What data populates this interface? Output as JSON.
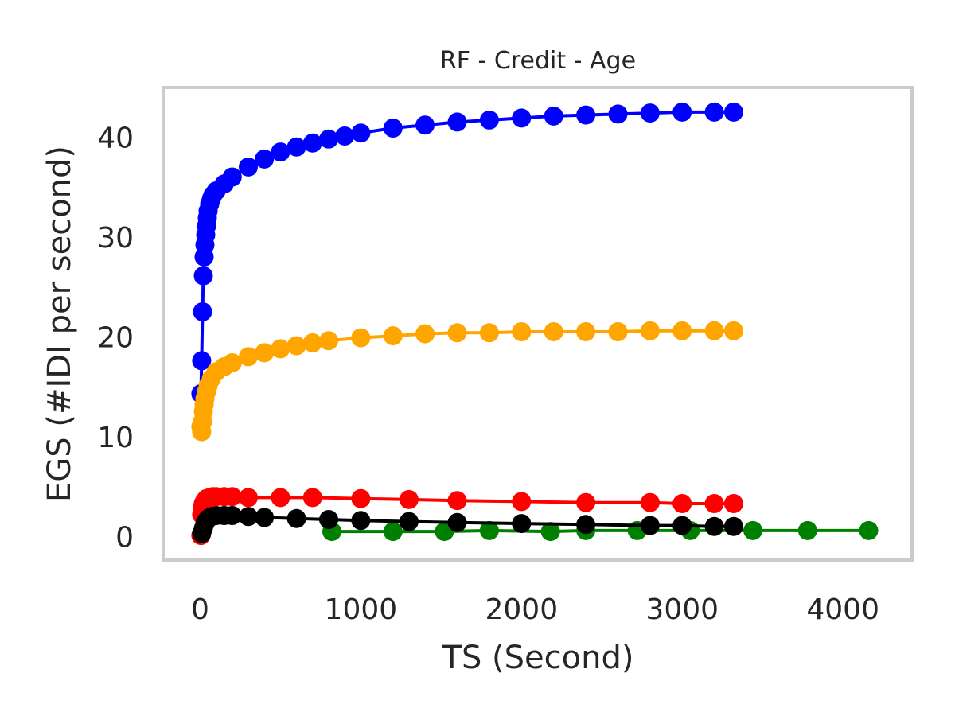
{
  "chart_data": {
    "type": "line",
    "title": "RF - Credit - Age",
    "xlabel": "TS (Second)",
    "ylabel": "EGS (#IDI  per second)",
    "xlim": [
      -220,
      4420
    ],
    "ylim": [
      -2.2,
      44.8
    ],
    "xticks": [
      0,
      1000,
      2000,
      3000,
      4000
    ],
    "yticks": [
      0,
      10,
      20,
      30,
      40
    ],
    "grid": false,
    "legend": "none",
    "series": [
      {
        "color": "#0000ff",
        "x": [
          5,
          10,
          15,
          20,
          25,
          30,
          35,
          40,
          45,
          50,
          60,
          70,
          80,
          100,
          150,
          200,
          300,
          400,
          500,
          600,
          700,
          800,
          900,
          1000,
          1200,
          1400,
          1600,
          1800,
          2000,
          2200,
          2400,
          2600,
          2800,
          3000,
          3200,
          3320
        ],
        "y": [
          14.3,
          17.6,
          22.5,
          26.1,
          28.0,
          29.2,
          30.2,
          31.1,
          31.9,
          32.6,
          33.3,
          33.8,
          34.2,
          34.6,
          35.3,
          36.0,
          37.0,
          37.8,
          38.5,
          39.0,
          39.4,
          39.8,
          40.1,
          40.4,
          40.9,
          41.2,
          41.5,
          41.7,
          41.9,
          42.1,
          42.2,
          42.3,
          42.4,
          42.5,
          42.5,
          42.5
        ]
      },
      {
        "color": "#ffa500",
        "x": [
          5,
          10,
          15,
          20,
          25,
          30,
          40,
          50,
          70,
          100,
          150,
          200,
          300,
          400,
          500,
          600,
          700,
          800,
          1000,
          1200,
          1400,
          1600,
          1800,
          2000,
          2200,
          2400,
          2600,
          2800,
          3000,
          3200,
          3320
        ],
        "y": [
          11.0,
          10.5,
          11.5,
          12.5,
          13.2,
          13.8,
          14.5,
          15.1,
          15.8,
          16.5,
          17.0,
          17.4,
          18.0,
          18.4,
          18.8,
          19.1,
          19.4,
          19.6,
          19.9,
          20.1,
          20.3,
          20.4,
          20.4,
          20.5,
          20.5,
          20.5,
          20.5,
          20.6,
          20.6,
          20.6,
          20.6
        ]
      },
      {
        "color": "#ff0000",
        "x": [
          5,
          10,
          15,
          20,
          30,
          40,
          60,
          80,
          100,
          150,
          200,
          300,
          500,
          700,
          1000,
          1300,
          1600,
          2000,
          2400,
          2800,
          3000,
          3200,
          3320
        ],
        "y": [
          0.1,
          2.2,
          3.0,
          3.3,
          3.6,
          3.8,
          3.9,
          4.0,
          4.0,
          4.0,
          4.0,
          3.9,
          3.9,
          3.9,
          3.8,
          3.7,
          3.6,
          3.5,
          3.4,
          3.4,
          3.3,
          3.3,
          3.3
        ]
      },
      {
        "color": "#008000",
        "x": [
          820,
          1200,
          1520,
          1800,
          2180,
          2400,
          2720,
          3050,
          3440,
          3780,
          4160
        ],
        "y": [
          0.5,
          0.5,
          0.5,
          0.6,
          0.5,
          0.6,
          0.6,
          0.6,
          0.6,
          0.6,
          0.6
        ]
      },
      {
        "color": "#000000",
        "x": [
          10,
          20,
          30,
          40,
          50,
          70,
          100,
          150,
          200,
          300,
          400,
          600,
          800,
          1000,
          1300,
          1600,
          2000,
          2400,
          2800,
          3000,
          3200,
          3320
        ],
        "y": [
          0.3,
          0.8,
          1.3,
          1.6,
          1.8,
          2.0,
          2.1,
          2.1,
          2.1,
          2.0,
          1.9,
          1.8,
          1.7,
          1.6,
          1.5,
          1.4,
          1.3,
          1.2,
          1.1,
          1.1,
          1.0,
          1.0
        ]
      }
    ]
  }
}
